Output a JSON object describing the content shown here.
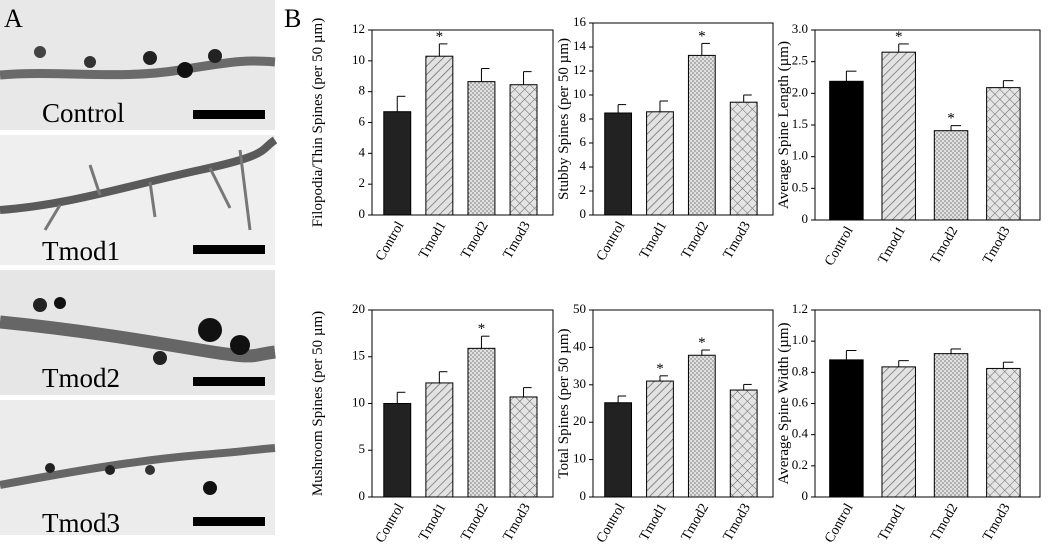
{
  "panels": {
    "a": "A",
    "b": "B"
  },
  "images": [
    "Control",
    "Tmod1",
    "Tmod2",
    "Tmod3"
  ],
  "chart_data": [
    {
      "type": "bar",
      "y_label": "Filopodia/Thin Spines (per 50 µm)",
      "categories": [
        "Control",
        "Tmod1",
        "Tmod2",
        "Tmod3"
      ],
      "values": [
        6.7,
        10.3,
        8.65,
        8.45
      ],
      "errors": [
        1.0,
        0.8,
        0.85,
        0.85
      ],
      "significance": [
        null,
        "*",
        null,
        null
      ],
      "fills": [
        "solid",
        "diagonal",
        "dots",
        "cross"
      ],
      "color": "#222222",
      "ylim": [
        0,
        12
      ],
      "yticks": [
        0,
        2,
        4,
        6,
        8,
        10,
        12
      ]
    },
    {
      "type": "bar",
      "y_label": "Stubby Spines (per 50 µm)",
      "categories": [
        "Control",
        "Tmod1",
        "Tmod2",
        "Tmod3"
      ],
      "values": [
        8.5,
        8.6,
        13.3,
        9.4
      ],
      "errors": [
        0.7,
        0.9,
        1.0,
        0.6
      ],
      "significance": [
        null,
        null,
        "*",
        null
      ],
      "fills": [
        "solid",
        "diagonal",
        "dots",
        "cross"
      ],
      "color": "#222222",
      "ylim": [
        0,
        16
      ],
      "yticks": [
        0,
        2,
        4,
        6,
        8,
        10,
        12,
        14,
        16
      ]
    },
    {
      "type": "bar",
      "y_label": "Average Spine Length (µm)",
      "categories": [
        "Control",
        "Tmod1",
        "Tmod2",
        "Tmod3"
      ],
      "values": [
        2.19,
        2.65,
        1.41,
        2.09
      ],
      "errors": [
        0.16,
        0.13,
        0.08,
        0.11
      ],
      "significance": [
        null,
        "*",
        "*",
        null
      ],
      "fills": [
        "solid",
        "diagonal",
        "dots",
        "cross"
      ],
      "color": "#000000",
      "ylim": [
        0,
        3
      ],
      "yticks": [
        0,
        0.5,
        {
          "value": 1,
          "label": "1.0"
        },
        1.5,
        {
          "value": 2,
          "label": "2.0"
        },
        2.5,
        {
          "value": 3,
          "label": "3.0"
        }
      ]
    },
    {
      "type": "bar",
      "y_label": "Mushroom Spines (per 50 µm)",
      "categories": [
        "Control",
        "Tmod1",
        "Tmod2",
        "Tmod3"
      ],
      "values": [
        10.0,
        12.2,
        15.9,
        10.7
      ],
      "errors": [
        1.2,
        1.2,
        1.3,
        1.0
      ],
      "significance": [
        null,
        null,
        "*",
        null
      ],
      "fills": [
        "solid",
        "diagonal",
        "dots",
        "cross"
      ],
      "color": "#222222",
      "ylim": [
        0,
        20
      ],
      "yticks": [
        0,
        5,
        10,
        15,
        20
      ]
    },
    {
      "type": "bar",
      "y_label": "Total Spines (per 50 µm)",
      "categories": [
        "Control",
        "Tmod1",
        "Tmod2",
        "Tmod3"
      ],
      "values": [
        25.2,
        31.0,
        37.9,
        28.6
      ],
      "errors": [
        1.8,
        1.4,
        1.4,
        1.5
      ],
      "significance": [
        null,
        "*",
        "*",
        null
      ],
      "fills": [
        "solid",
        "diagonal",
        "dots",
        "cross"
      ],
      "color": "#222222",
      "ylim": [
        0,
        50
      ],
      "yticks": [
        0,
        10,
        20,
        30,
        40,
        50
      ]
    },
    {
      "type": "bar",
      "y_label": "Average Spine Width (µm)",
      "categories": [
        "Control",
        "Tmod1",
        "Tmod2",
        "Tmod3"
      ],
      "values": [
        0.88,
        0.835,
        0.92,
        0.825
      ],
      "errors": [
        0.06,
        0.04,
        0.03,
        0.04
      ],
      "significance": [
        null,
        null,
        null,
        null
      ],
      "fills": [
        "solid",
        "diagonal",
        "dots",
        "cross"
      ],
      "color": "#000000",
      "ylim": [
        0,
        1.2
      ],
      "yticks": [
        0,
        0.2,
        0.4,
        0.6,
        0.8,
        {
          "value": 1,
          "label": "1.0"
        },
        1.2
      ]
    }
  ]
}
